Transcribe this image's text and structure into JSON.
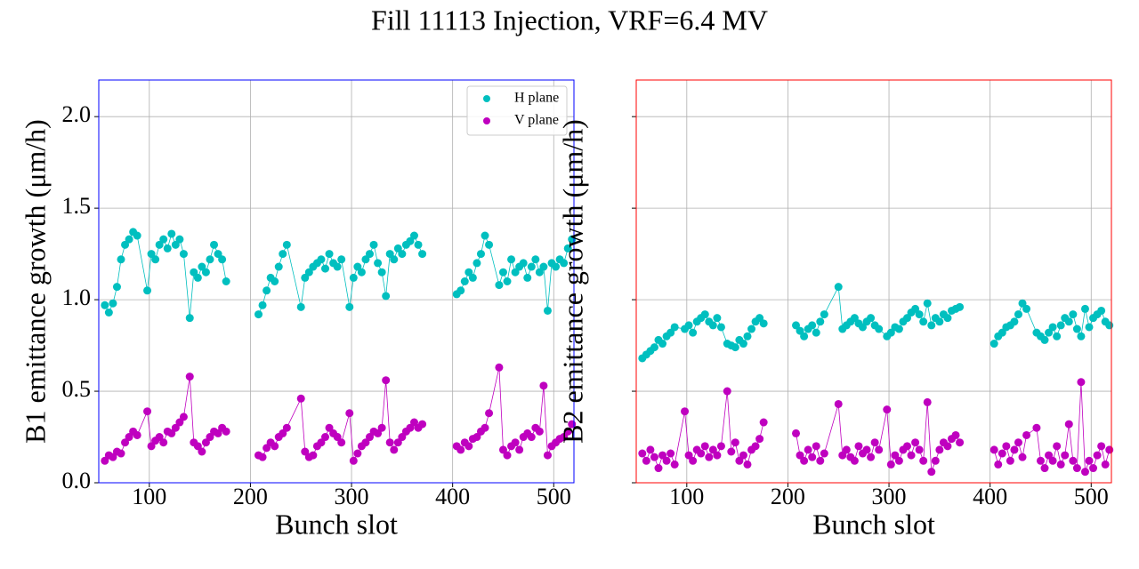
{
  "title": "Fill 11113 Injection, VRF=6.4 MV",
  "chart_data": [
    {
      "type": "scatter",
      "xlabel": "Bunch slot",
      "ylabel": "B1 emittance growth (μm/h)",
      "x": [
        56,
        60,
        64,
        68,
        72,
        76,
        80,
        84,
        88,
        98,
        102,
        106,
        110,
        114,
        118,
        122,
        126,
        130,
        134,
        140,
        144,
        148,
        152,
        156,
        160,
        164,
        168,
        172,
        176,
        190,
        208,
        212,
        216,
        220,
        224,
        228,
        232,
        236,
        250,
        254,
        258,
        262,
        266,
        270,
        274,
        278,
        282,
        286,
        290,
        298,
        302,
        306,
        310,
        314,
        318,
        322,
        326,
        330,
        334,
        338,
        342,
        346,
        350,
        354,
        358,
        362,
        366,
        370,
        390,
        404,
        408,
        412,
        416,
        420,
        424,
        428,
        432,
        436,
        446,
        450,
        454,
        458,
        462,
        466,
        470,
        474,
        478,
        482,
        486,
        490,
        494,
        498,
        502,
        506,
        510,
        514,
        518
      ],
      "series": [
        {
          "name": "H plane",
          "color": "#00bfbf",
          "values": [
            0.97,
            0.93,
            0.98,
            1.07,
            1.22,
            1.3,
            1.33,
            1.37,
            1.35,
            1.05,
            1.25,
            1.22,
            1.3,
            1.33,
            1.28,
            1.36,
            1.3,
            1.33,
            1.25,
            0.9,
            1.15,
            1.12,
            1.18,
            1.15,
            1.22,
            1.3,
            1.25,
            1.22,
            1.1,
            null,
            0.92,
            0.97,
            1.05,
            1.12,
            1.1,
            1.18,
            1.25,
            1.3,
            0.96,
            1.12,
            1.15,
            1.18,
            1.2,
            1.22,
            1.17,
            1.25,
            1.2,
            1.18,
            1.22,
            0.96,
            1.12,
            1.18,
            1.15,
            1.22,
            1.25,
            1.3,
            1.2,
            1.15,
            1.02,
            1.25,
            1.22,
            1.28,
            1.25,
            1.3,
            1.32,
            1.35,
            1.3,
            1.25,
            null,
            1.03,
            1.05,
            1.1,
            1.15,
            1.12,
            1.2,
            1.25,
            1.35,
            1.3,
            1.08,
            1.15,
            1.1,
            1.22,
            1.15,
            1.18,
            1.2,
            1.12,
            1.18,
            1.22,
            1.15,
            1.18,
            0.94,
            1.2,
            1.18,
            1.22,
            1.2,
            1.28,
            1.33
          ]
        },
        {
          "name": "V plane",
          "color": "#bf00bf",
          "values": [
            0.12,
            0.15,
            0.14,
            0.17,
            0.16,
            0.22,
            0.25,
            0.28,
            0.26,
            0.39,
            0.2,
            0.23,
            0.25,
            0.22,
            0.28,
            0.27,
            0.3,
            0.33,
            0.36,
            0.58,
            0.22,
            0.2,
            0.17,
            0.22,
            0.25,
            0.28,
            0.27,
            0.3,
            0.28,
            null,
            0.15,
            0.14,
            0.19,
            0.22,
            0.2,
            0.25,
            0.27,
            0.3,
            0.46,
            0.17,
            0.14,
            0.15,
            0.2,
            0.22,
            0.25,
            0.3,
            0.27,
            0.25,
            0.22,
            0.38,
            0.12,
            0.16,
            0.2,
            0.22,
            0.25,
            0.28,
            0.27,
            0.3,
            0.56,
            0.22,
            0.18,
            0.22,
            0.25,
            0.28,
            0.3,
            0.33,
            0.3,
            0.32,
            null,
            0.2,
            0.18,
            0.22,
            0.2,
            0.24,
            0.25,
            0.28,
            0.3,
            0.38,
            0.63,
            0.18,
            0.15,
            0.2,
            0.22,
            0.18,
            0.25,
            0.27,
            0.25,
            0.3,
            0.28,
            0.53,
            0.15,
            0.2,
            0.22,
            0.24,
            0.25,
            0.28,
            0.32
          ]
        }
      ],
      "xlim": [
        50,
        520
      ],
      "ylim": [
        0,
        2.2
      ],
      "xticks": [
        100,
        200,
        300,
        400,
        500
      ],
      "yticks": [
        {
          "value": 0,
          "label": "0.0"
        },
        {
          "value": 0.5,
          "label": "0.5"
        },
        {
          "value": 1,
          "label": "1.0"
        },
        {
          "value": 1.5,
          "label": "1.5"
        },
        {
          "value": 2,
          "label": "2.0"
        }
      ],
      "grid": true,
      "legend": "upper right",
      "frame_color": "#0000ff"
    },
    {
      "type": "scatter",
      "xlabel": "Bunch slot",
      "ylabel": "B2 emittance growth (μm/h)",
      "x": [
        56,
        60,
        64,
        68,
        72,
        76,
        80,
        84,
        88,
        98,
        102,
        106,
        110,
        114,
        118,
        122,
        126,
        130,
        134,
        140,
        144,
        148,
        152,
        156,
        160,
        164,
        168,
        172,
        176,
        190,
        208,
        212,
        216,
        220,
        224,
        228,
        232,
        236,
        250,
        254,
        258,
        262,
        266,
        270,
        274,
        278,
        282,
        286,
        290,
        298,
        302,
        306,
        310,
        314,
        318,
        322,
        326,
        330,
        334,
        338,
        342,
        346,
        350,
        354,
        358,
        362,
        366,
        370,
        390,
        404,
        408,
        412,
        416,
        420,
        424,
        428,
        432,
        436,
        446,
        450,
        454,
        458,
        462,
        466,
        470,
        474,
        478,
        482,
        486,
        490,
        494,
        498,
        502,
        506,
        510,
        514,
        518
      ],
      "series": [
        {
          "color": "#00bfbf",
          "values": [
            0.68,
            0.7,
            0.72,
            0.74,
            0.78,
            0.76,
            0.8,
            0.82,
            0.85,
            0.84,
            0.86,
            0.82,
            0.88,
            0.9,
            0.92,
            0.88,
            0.86,
            0.9,
            0.85,
            0.76,
            0.75,
            0.74,
            0.78,
            0.76,
            0.8,
            0.84,
            0.88,
            0.9,
            0.87,
            null,
            0.86,
            0.83,
            0.8,
            0.84,
            0.86,
            0.82,
            0.88,
            0.92,
            1.07,
            0.84,
            0.86,
            0.88,
            0.9,
            0.87,
            0.85,
            0.88,
            0.9,
            0.86,
            0.84,
            0.8,
            0.82,
            0.85,
            0.84,
            0.88,
            0.9,
            0.93,
            0.95,
            0.92,
            0.88,
            0.98,
            0.86,
            0.9,
            0.88,
            0.92,
            0.9,
            0.94,
            0.95,
            0.96,
            null,
            0.76,
            0.8,
            0.82,
            0.85,
            0.86,
            0.88,
            0.92,
            0.98,
            0.95,
            0.82,
            0.8,
            0.78,
            0.82,
            0.85,
            0.8,
            0.86,
            0.9,
            0.88,
            0.92,
            0.84,
            0.8,
            0.95,
            0.85,
            0.9,
            0.92,
            0.94,
            0.88,
            0.86
          ]
        },
        {
          "color": "#bf00bf",
          "values": [
            0.16,
            0.12,
            0.18,
            0.14,
            0.08,
            0.15,
            0.12,
            0.16,
            0.1,
            0.39,
            0.15,
            0.12,
            0.18,
            0.16,
            0.2,
            0.14,
            0.18,
            0.15,
            0.2,
            0.5,
            0.17,
            0.22,
            0.12,
            0.15,
            0.1,
            0.18,
            0.2,
            0.24,
            0.33,
            null,
            0.27,
            0.15,
            0.12,
            0.18,
            0.14,
            0.2,
            0.12,
            0.16,
            0.43,
            0.15,
            0.18,
            0.14,
            0.12,
            0.2,
            0.16,
            0.18,
            0.14,
            0.22,
            0.18,
            0.4,
            0.1,
            0.15,
            0.12,
            0.18,
            0.2,
            0.15,
            0.22,
            0.18,
            0.12,
            0.44,
            0.06,
            0.12,
            0.18,
            0.22,
            0.2,
            0.24,
            0.26,
            0.22,
            null,
            0.18,
            0.1,
            0.16,
            0.2,
            0.12,
            0.18,
            0.22,
            0.14,
            0.26,
            0.3,
            0.12,
            0.08,
            0.15,
            0.12,
            0.2,
            0.1,
            0.15,
            0.32,
            0.12,
            0.08,
            0.55,
            0.06,
            0.12,
            0.08,
            0.15,
            0.2,
            0.1,
            0.18
          ]
        }
      ],
      "xlim": [
        50,
        520
      ],
      "ylim": [
        0,
        2.2
      ],
      "xticks": [
        100,
        200,
        300,
        400,
        500
      ],
      "yticks": [
        0,
        0.5,
        1,
        1.5,
        2
      ],
      "grid": true,
      "frame_color": "#ff0000"
    }
  ]
}
